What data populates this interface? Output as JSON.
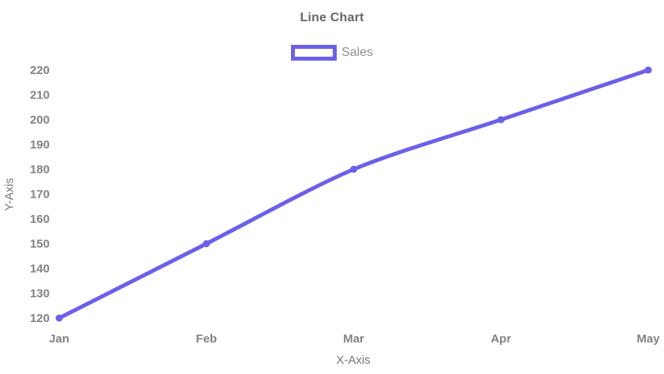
{
  "chart_data": {
    "type": "line",
    "title": "Line Chart",
    "categories": [
      "Jan",
      "Feb",
      "Mar",
      "Apr",
      "May"
    ],
    "series": [
      {
        "name": "Sales",
        "values": [
          120,
          150,
          180,
          200,
          220
        ]
      }
    ],
    "xlabel": "X-Axis",
    "ylabel": "Y-Axis",
    "ylim": [
      120,
      220
    ],
    "yticks": [
      120,
      130,
      140,
      150,
      160,
      170,
      180,
      190,
      200,
      210,
      220
    ],
    "grid": false,
    "legend_position": "top-center",
    "colors": {
      "line": "#6c60e8",
      "point": "#6c60e8",
      "legend_border": "#6c60e8",
      "title_text": "#666666",
      "tick_text": "#828282",
      "axis_title_text": "#757575",
      "legend_text": "#909090",
      "background": "#ffffff"
    }
  }
}
